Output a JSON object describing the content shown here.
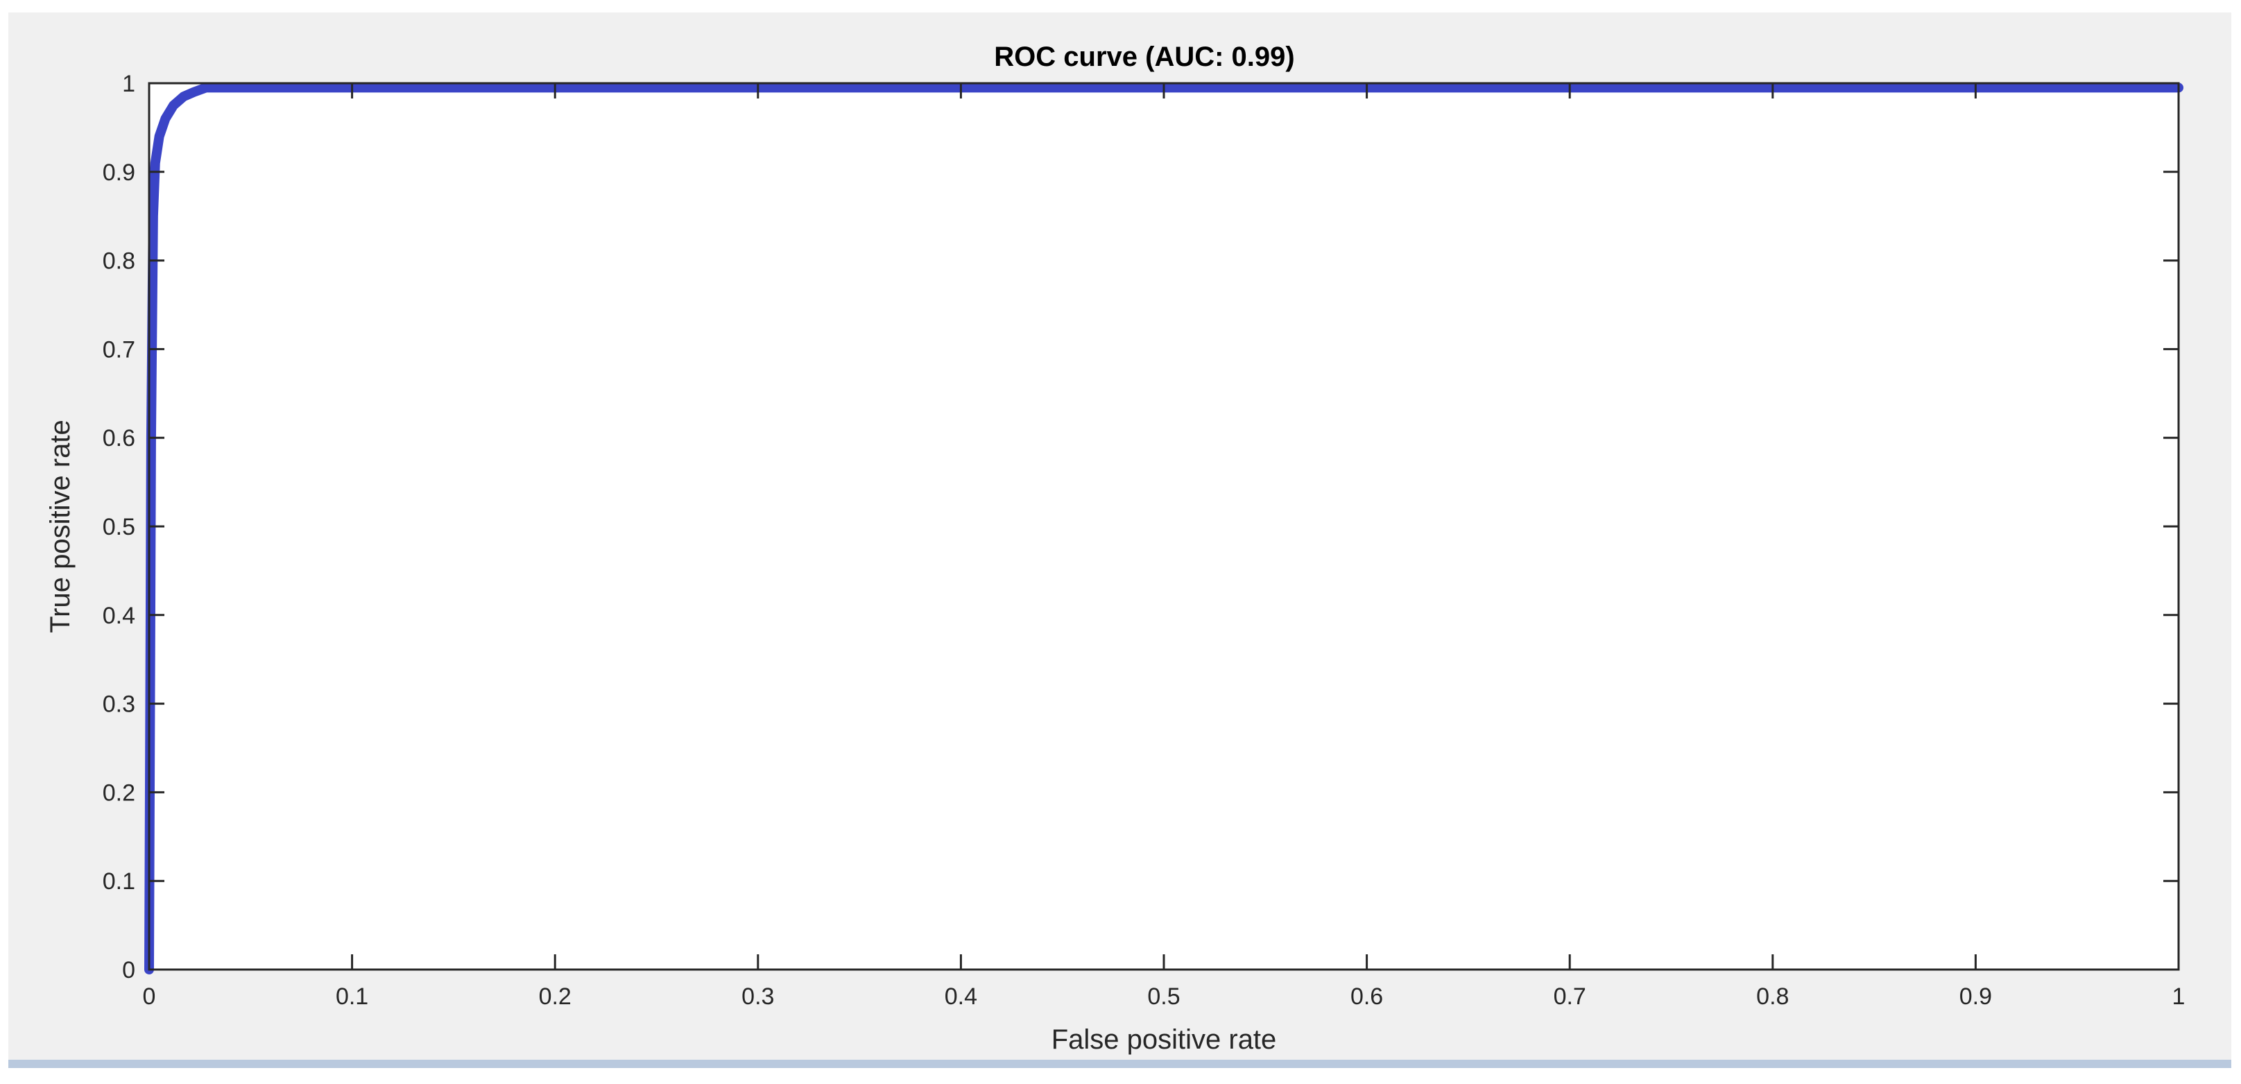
{
  "chart_data": {
    "type": "line",
    "title": "ROC curve (AUC: 0.99)",
    "xlabel": "False positive rate",
    "ylabel": "True positive rate",
    "xlim": [
      0,
      1
    ],
    "ylim": [
      0,
      1
    ],
    "xticks": [
      "0",
      "0.1",
      "0.2",
      "0.3",
      "0.4",
      "0.5",
      "0.6",
      "0.7",
      "0.8",
      "0.9",
      "1"
    ],
    "yticks": [
      "0",
      "0.1",
      "0.2",
      "0.3",
      "0.4",
      "0.5",
      "0.6",
      "0.7",
      "0.8",
      "0.9",
      "1"
    ],
    "grid": false,
    "legend": "none",
    "series": [
      {
        "color": "#3a44c6",
        "x": [
          0,
          0.001,
          0.002,
          0.003,
          0.005,
          0.008,
          0.012,
          0.017,
          0.022,
          0.028,
          0.04,
          0.1,
          0.3,
          0.5,
          0.7,
          0.9,
          1.0
        ],
        "y": [
          0,
          0.6,
          0.85,
          0.91,
          0.94,
          0.96,
          0.975,
          0.985,
          0.99,
          0.995,
          0.995,
          0.995,
          0.995,
          0.995,
          0.995,
          0.995,
          0.995
        ]
      }
    ]
  },
  "colors": {
    "background": "#ffffff",
    "frame": "#f0f0f0",
    "axis": "#262626",
    "bottom_bar": "#b9c9de"
  }
}
